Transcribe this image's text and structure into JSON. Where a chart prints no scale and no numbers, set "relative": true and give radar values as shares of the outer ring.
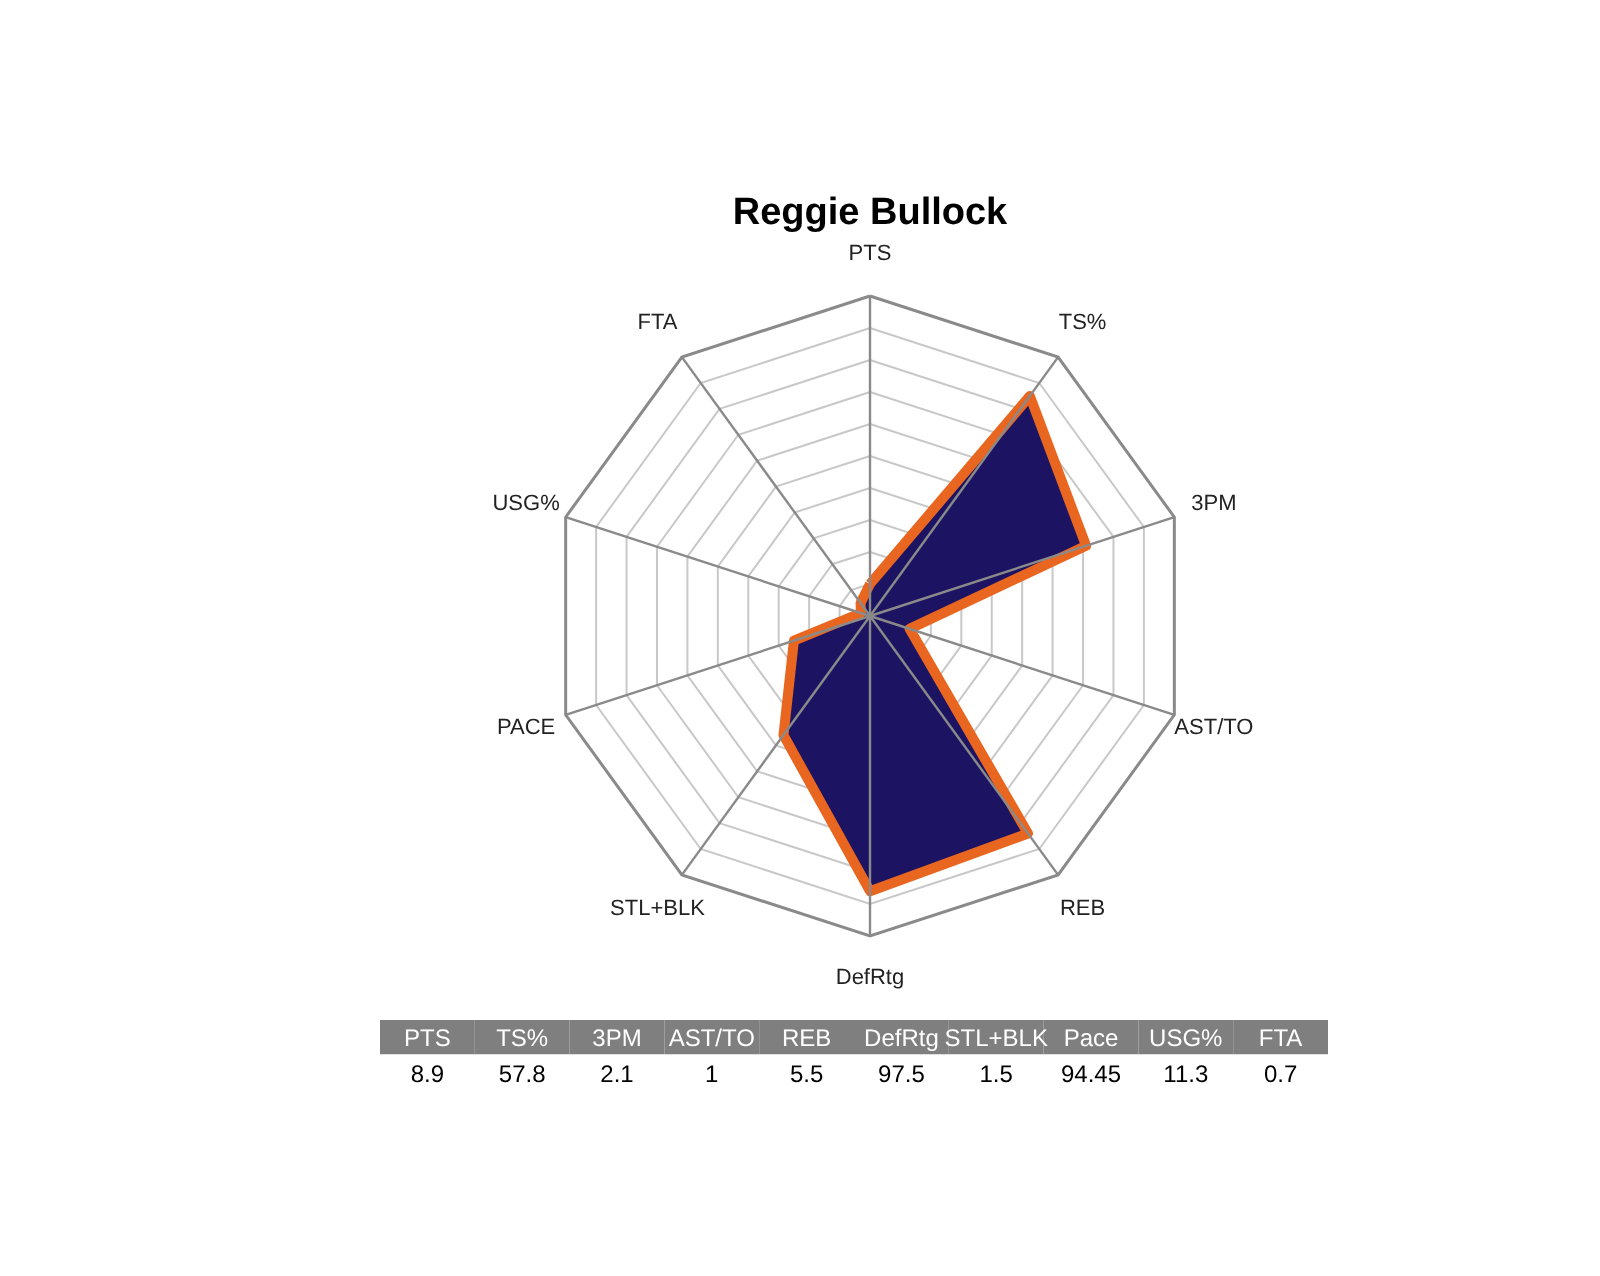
{
  "chart_data": [
    {
      "type": "radar",
      "title": "Reggie Bullock",
      "relative": true,
      "grid": true,
      "categories": [
        "PTS",
        "TS%",
        "3PM",
        "AST/TO",
        "REB",
        "DefRtg",
        "STL+BLK",
        "PACE",
        "USG%",
        "FTA"
      ],
      "series": [
        {
          "color": "#e8661f",
          "values": [
            0.1,
            0.85,
            0.71,
            0.13,
            0.84,
            0.86,
            0.46,
            0.25,
            0.03,
            0.05
          ]
        }
      ]
    },
    {
      "type": "other",
      "data_labels": true,
      "categories": [
        "PTS",
        "TS%",
        "3PM",
        "AST/TO",
        "REB",
        "DefRtg",
        "STL+BLK",
        "Pace",
        "USG%",
        "FTA"
      ],
      "values": [
        8.9,
        57.8,
        2.1,
        1,
        5.5,
        97.5,
        1.5,
        94.45,
        11.3,
        0.7
      ]
    }
  ]
}
